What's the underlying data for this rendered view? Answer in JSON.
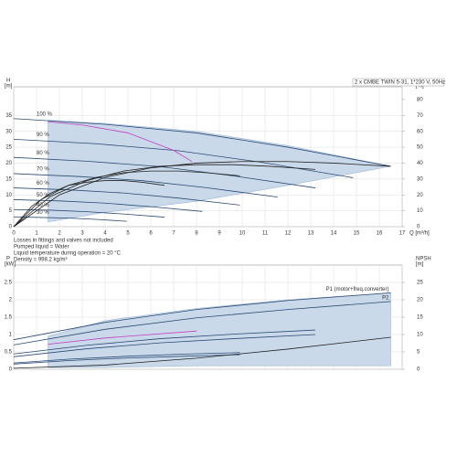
{
  "chart_data": [
    {
      "type": "line",
      "header": "2 x CMBE TWIN 5-31, 1*230 V, 50Hz",
      "ylabel": "H",
      "yunit": "[m]",
      "y2label": "eta",
      "y2unit": "[%]",
      "xlabel": "Q [m³/h]",
      "xlim": [
        0,
        17
      ],
      "xticks": [
        0,
        1,
        2,
        3,
        4,
        5,
        6,
        7,
        8,
        9,
        10,
        11,
        12,
        13,
        14,
        15,
        16,
        17
      ],
      "ylim": [
        0,
        44
      ],
      "yticks": [
        0,
        5,
        10,
        15,
        20,
        25,
        30,
        35
      ],
      "y2lim": [
        0,
        88
      ],
      "y2ticks": [
        0,
        10,
        20,
        30,
        40,
        50,
        60,
        70,
        80
      ],
      "grid": true,
      "notes": [
        "Losses in fittings and valves not included",
        "Pumped liquid = Water",
        "Liquid temperature during operation = 20 °C",
        "Density = 998.2 kg/m³"
      ],
      "series": [
        {
          "fill": "#c9d9ea",
          "color": "#9fb8d3",
          "x": [
            1.5,
            4,
            8,
            12,
            16.5,
            12,
            8,
            4,
            1.5
          ],
          "values": [
            33.5,
            32.5,
            30,
            25.5,
            19,
            13,
            8,
            4.5,
            1.5
          ]
        },
        {
          "name": "100 %",
          "color": "#2b4a73",
          "x": [
            0,
            4,
            8,
            12,
            16.5
          ],
          "values": [
            34,
            32.2,
            29.5,
            25,
            19
          ]
        },
        {
          "name": "90 %",
          "color": "#2b4a73",
          "x": [
            0,
            3.6,
            7.2,
            10.8,
            14.85
          ],
          "values": [
            27.5,
            26.1,
            23.9,
            20.3,
            15.4
          ]
        },
        {
          "name": "80 %",
          "color": "#2b4a73",
          "x": [
            0,
            3.2,
            6.4,
            9.6,
            13.2
          ],
          "values": [
            21.8,
            20.6,
            18.9,
            16,
            12.2
          ]
        },
        {
          "name": "70 %",
          "color": "#2b4a73",
          "x": [
            0,
            2.8,
            5.6,
            8.4,
            11.55
          ],
          "values": [
            16.7,
            15.8,
            14.5,
            12.3,
            9.3
          ]
        },
        {
          "name": "60 %",
          "color": "#2b4a73",
          "x": [
            0,
            2.4,
            4.8,
            7.2,
            9.9
          ],
          "values": [
            12.2,
            11.6,
            10.6,
            9,
            6.8
          ]
        },
        {
          "name": "50 %",
          "color": "#2b4a73",
          "x": [
            0,
            2,
            4,
            6,
            8.25
          ],
          "values": [
            8.5,
            8.1,
            7.4,
            6.3,
            4.8
          ]
        },
        {
          "name": "40 %",
          "color": "#2b4a73",
          "x": [
            0,
            1.6,
            3.2,
            4.8,
            6.6
          ],
          "values": [
            5.4,
            5.2,
            4.7,
            4,
            3
          ]
        },
        {
          "name": "30 %",
          "color": "#2b4a73",
          "x": [
            0,
            1.2,
            2.4,
            3.6,
            4.95
          ],
          "values": [
            3.1,
            2.9,
            2.7,
            2.3,
            1.7
          ]
        },
        {
          "color": "#c040c0",
          "x": [
            1.5,
            3,
            5,
            7,
            7.8
          ],
          "values": [
            33,
            32,
            29.5,
            24,
            20.5
          ]
        },
        {
          "axis": "y2",
          "color": "#222222",
          "x": [
            0,
            2,
            4,
            6,
            8,
            10,
            12,
            14,
            16.5
          ],
          "values": [
            0,
            20,
            31,
            37,
            40,
            41,
            41,
            40,
            38
          ]
        },
        {
          "axis": "y2",
          "color": "#222222",
          "x": [
            0,
            1.6,
            3.2,
            4.8,
            6.4,
            8,
            9.6,
            11.2,
            13.2
          ],
          "values": [
            0,
            19,
            29,
            35,
            38,
            39,
            39,
            38,
            36
          ]
        },
        {
          "axis": "y2",
          "color": "#222222",
          "x": [
            0,
            1.2,
            2.4,
            3.6,
            4.8,
            6,
            7.2,
            8.4,
            9.9
          ],
          "values": [
            0,
            17,
            26,
            31,
            34,
            35,
            35,
            34,
            32
          ]
        },
        {
          "axis": "y2",
          "color": "#222222",
          "x": [
            0,
            0.8,
            1.6,
            2.4,
            3.2,
            4,
            4.8,
            5.6,
            6.6
          ],
          "values": [
            0,
            13,
            21,
            26,
            28,
            29,
            29,
            28,
            26
          ]
        }
      ]
    },
    {
      "type": "line",
      "ylabel": "P",
      "yunit": "[kW]",
      "y2label": "NPSH",
      "y2unit": "[m]",
      "xlim": [
        0,
        17
      ],
      "xticks": [
        0,
        1,
        2,
        3,
        4,
        5,
        6,
        7,
        8,
        9,
        10,
        11,
        12,
        13,
        14,
        15,
        16,
        17
      ],
      "ylim": [
        0,
        3
      ],
      "yticks": [
        0,
        0.5,
        1,
        1.5,
        2,
        2.5
      ],
      "y2lim": [
        0,
        30
      ],
      "y2ticks": [
        0,
        5,
        10,
        15,
        20,
        25
      ],
      "grid": true,
      "series": [
        {
          "fill": "#c9d9ea",
          "color": "#9fb8d3",
          "x": [
            1.5,
            4,
            8,
            12,
            16.5,
            16.5,
            12,
            8,
            4,
            1.5
          ],
          "values": [
            0.95,
            1.4,
            1.75,
            2,
            2.2,
            0.1,
            0.1,
            0.1,
            0.05,
            0.05
          ]
        },
        {
          "name": "P1 (motor+freq.converter)",
          "color": "#2b4a73",
          "x": [
            0,
            4,
            8,
            12,
            16.5
          ],
          "values": [
            0.85,
            1.35,
            1.72,
            1.98,
            2.2
          ]
        },
        {
          "name": "P2",
          "color": "#2b4a73",
          "x": [
            0,
            4,
            8,
            12,
            16.5
          ],
          "values": [
            0.7,
            1.15,
            1.48,
            1.72,
            1.95
          ]
        },
        {
          "color": "#2b4a73",
          "x": [
            0,
            3.2,
            6.4,
            9.6,
            13.2
          ],
          "values": [
            0.44,
            0.69,
            0.88,
            1.01,
            1.13
          ]
        },
        {
          "color": "#2b4a73",
          "x": [
            0,
            3.2,
            6.4,
            9.6,
            13.2
          ],
          "values": [
            0.36,
            0.59,
            0.76,
            0.88,
            1
          ]
        },
        {
          "color": "#2b4a73",
          "x": [
            0,
            2.4,
            4.8,
            7.2,
            9.9
          ],
          "values": [
            0.18,
            0.29,
            0.37,
            0.43,
            0.48
          ]
        },
        {
          "color": "#2b4a73",
          "x": [
            0,
            2.4,
            4.8,
            7.2,
            9.9
          ],
          "values": [
            0.15,
            0.25,
            0.32,
            0.37,
            0.42
          ]
        },
        {
          "color": "#c040c0",
          "x": [
            1.5,
            4,
            8
          ],
          "values": [
            0.72,
            0.9,
            1.1
          ]
        },
        {
          "axis": "y2",
          "color": "#222222",
          "x": [
            0,
            4,
            8,
            12,
            16.5
          ],
          "values": [
            0.3,
            1.2,
            3.2,
            5.8,
            9.2
          ]
        }
      ]
    }
  ]
}
